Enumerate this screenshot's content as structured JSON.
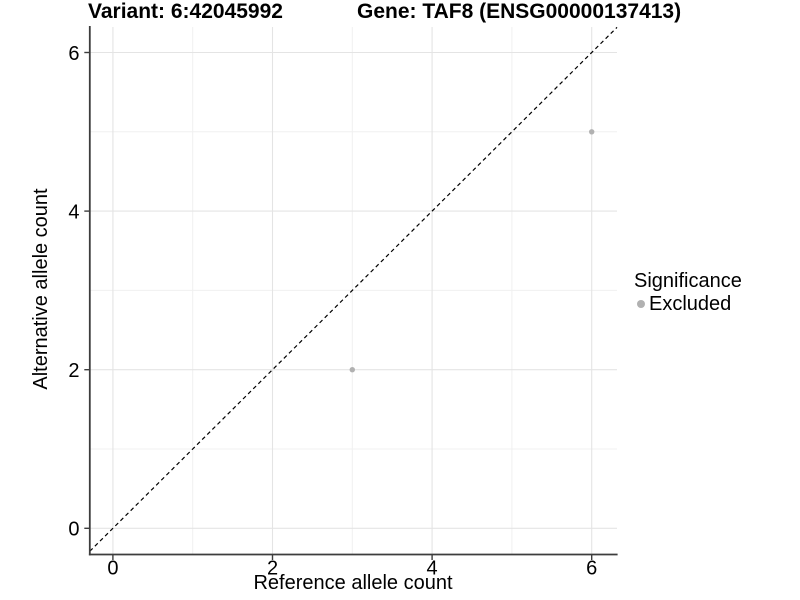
{
  "colors": {
    "background": "#ffffff",
    "axis": "#3d3d3d",
    "grid_major": "#e4e4e4",
    "grid_minor": "#f0f0f0",
    "text": "#000000",
    "point": "#b1b1b1",
    "reference_line": "#000000"
  },
  "chart_data": {
    "type": "scatter",
    "titles": {
      "left": "Variant: 6:42045992",
      "right": "Gene: TAF8 (ENSG00000137413)"
    },
    "xlabel": "Reference allele count",
    "ylabel": "Alternative allele count",
    "xlim": [
      -0.29,
      6.32
    ],
    "ylim": [
      -0.33,
      6.35
    ],
    "xticks": [
      0,
      2,
      4,
      6
    ],
    "yticks": [
      0,
      2,
      4,
      6
    ],
    "x_minor": [
      1,
      3,
      5
    ],
    "y_minor": [
      1,
      3,
      5
    ],
    "grid": "major and minor, light gray on white",
    "series": [
      {
        "name": "Excluded",
        "color": "#b1b1b1",
        "points": [
          [
            3,
            2
          ],
          [
            6,
            5
          ]
        ]
      }
    ],
    "reference_line": {
      "type": "identity",
      "slope": 1,
      "intercept": 0,
      "style": "dashed",
      "color": "#000000"
    },
    "legend": {
      "title": "Significance",
      "position": "right",
      "entries": [
        {
          "label": "Excluded",
          "marker": "circle",
          "color": "#b1b1b1"
        }
      ]
    }
  }
}
